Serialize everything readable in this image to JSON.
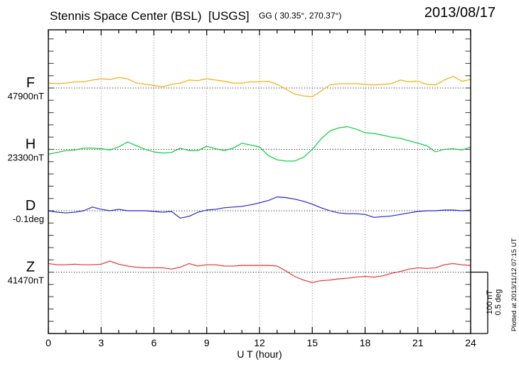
{
  "header": {
    "title": "Stennis Space Center (BSL)  [USGS]",
    "coords": "GG ( 30.35°, 270.37°)",
    "date": "2013/08/17"
  },
  "scale_bar": {
    "labels": [
      "100 nT",
      "0.5 deg"
    ]
  },
  "plotted_at": "Plotted at 2013/11/12 07:15 UT",
  "chart_data": {
    "type": "line",
    "title": "Stennis Space Center (BSL) [USGS] magnetogram 2013/08/17",
    "xlabel": "U T (hour)",
    "x": {
      "start": 0,
      "step": 0.5,
      "count": 49,
      "unit": "hour"
    },
    "x_range": [
      0,
      24
    ],
    "x_ticks_major": [
      0,
      3,
      6,
      9,
      12,
      15,
      18,
      21,
      24
    ],
    "x_minor_every": 1,
    "grid": "dotted vertical gridlines every 3 h; dotted horizontal baseline per trace",
    "legend_position": "left labels, one per trace",
    "scale": {
      "nT_per_bar": 100,
      "deg_per_bar": 0.5
    },
    "series": [
      {
        "name": "F",
        "unit": "nT",
        "baseline_value": 47900,
        "baseline_label": "47900nT",
        "color": "#f5a800",
        "offsets": [
          8,
          7,
          8,
          10,
          10,
          13,
          15,
          14,
          17,
          15,
          8,
          6,
          4,
          2,
          6,
          8,
          13,
          12,
          15,
          13,
          11,
          8,
          8,
          10,
          10,
          11,
          6,
          -2,
          -10,
          -13,
          -14,
          -5,
          5,
          7,
          7,
          7,
          6,
          5,
          6,
          7,
          13,
          10,
          11,
          6,
          5,
          13,
          19,
          11,
          14
        ]
      },
      {
        "name": "H",
        "unit": "nT",
        "baseline_value": 23300,
        "baseline_label": "23300nT",
        "color": "#00cc33",
        "offsets": [
          -8,
          -5,
          -2,
          -1,
          2,
          2,
          1,
          -1,
          4,
          12,
          6,
          0,
          -4,
          -6,
          -5,
          2,
          -2,
          -2,
          5,
          1,
          -2,
          2,
          10,
          7,
          4,
          -10,
          -17,
          -19,
          -19,
          -13,
          0,
          17,
          30,
          35,
          37,
          33,
          27,
          26,
          23,
          20,
          18,
          14,
          10,
          6,
          -4,
          0,
          1,
          -1,
          4
        ]
      },
      {
        "name": "D",
        "unit": "deg",
        "baseline_value": -0.1,
        "baseline_label": "-0.1deg",
        "color": "#2222cc",
        "offsets": [
          0,
          -0.012,
          -0.018,
          -0.012,
          0,
          0.03,
          0.012,
          0,
          0.012,
          0,
          0,
          0,
          -0.006,
          -0.012,
          -0.006,
          -0.06,
          -0.045,
          -0.012,
          0.006,
          0.012,
          0.024,
          0.03,
          0.036,
          0.048,
          0.065,
          0.083,
          0.113,
          0.107,
          0.095,
          0.077,
          0.054,
          0.024,
          0,
          -0.018,
          -0.024,
          -0.024,
          -0.03,
          -0.054,
          -0.048,
          -0.042,
          -0.03,
          -0.018,
          -0.006,
          0,
          0,
          0.006,
          0.006,
          0,
          0.006
        ]
      },
      {
        "name": "Z",
        "unit": "nT",
        "baseline_value": 41470,
        "baseline_label": "41470nT",
        "color": "#e62e2e",
        "offsets": [
          14,
          12,
          12,
          13,
          12,
          12,
          13,
          18,
          13,
          10,
          8,
          7,
          7,
          7,
          5,
          8,
          14,
          10,
          12,
          12,
          10,
          10,
          11,
          11,
          11,
          11,
          10,
          2,
          -7,
          -13,
          -17,
          -14,
          -13,
          -11,
          -10,
          -8,
          -7,
          -8,
          -6,
          -2,
          1,
          5,
          7,
          6,
          7,
          12,
          14,
          12,
          11
        ]
      }
    ]
  }
}
